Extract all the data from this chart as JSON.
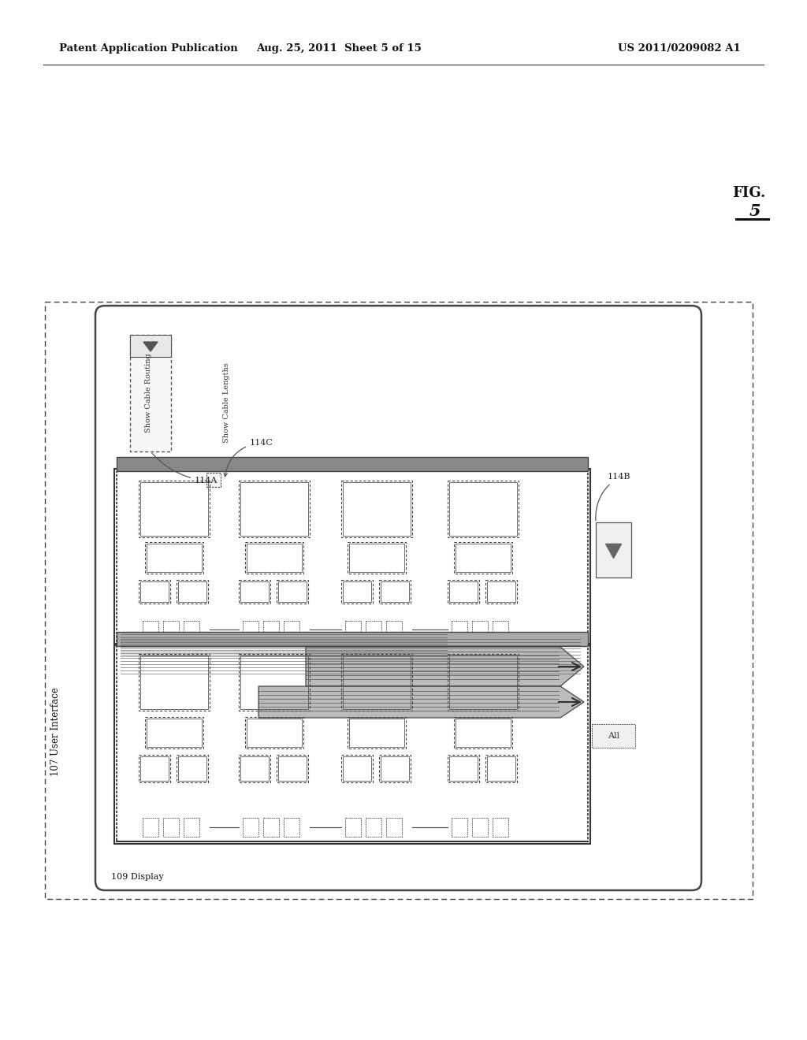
{
  "bg_color": "#ffffff",
  "header_text1": "Patent Application Publication",
  "header_text2": "Aug. 25, 2011  Sheet 5 of 15",
  "header_text3": "US 2011/0209082 A1",
  "fig_label_top": "FIG.",
  "fig_label_num": "5",
  "ui_label": "107 User Interface",
  "display_label": "109 Display",
  "label_114A": "114A",
  "label_114B": "114B",
  "label_114C": "114C",
  "text_show_cable_routing": "Show Cable Routing",
  "text_show_cable_lengths": "Show Cable Lengths",
  "text_all": "All"
}
